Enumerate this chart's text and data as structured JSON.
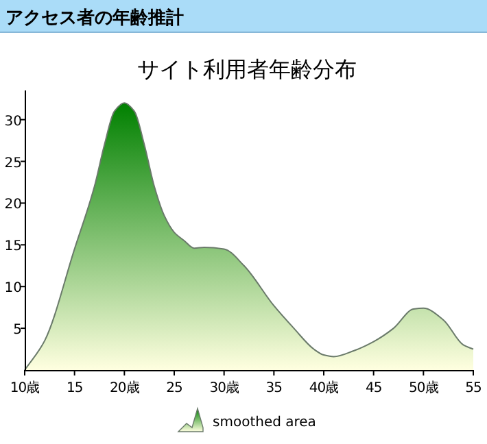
{
  "chart_data": {
    "type": "area",
    "title": "アクセス者の年齢推計",
    "subtitle": "サイト利用者年齢分布",
    "x": [
      10,
      12,
      15,
      17,
      18,
      19,
      20,
      21,
      22,
      23,
      24,
      25,
      26,
      27,
      28,
      30,
      32,
      35,
      37,
      39,
      40,
      41,
      43,
      45,
      47,
      49,
      50,
      52,
      54,
      55
    ],
    "series": [
      {
        "name": "smoothed area",
        "color": "#008000",
        "values": [
          0,
          3.5,
          14.5,
          22,
          27,
          31,
          32,
          31,
          27,
          22,
          18.5,
          16.5,
          15.5,
          14.6,
          14.7,
          14.5,
          12.5,
          7.7,
          5,
          2.5,
          1.8,
          1.6,
          2.3,
          3.4,
          5,
          7.3,
          7.4,
          6,
          3,
          2.5
        ]
      }
    ],
    "xlim": [
      10,
      55
    ],
    "xticks": [
      {
        "value": 10,
        "label": "10歳"
      },
      15,
      {
        "value": 20,
        "label": "20歳"
      },
      25,
      {
        "value": 30,
        "label": "30歳"
      },
      35,
      {
        "value": 40,
        "label": "40歳"
      },
      45,
      {
        "value": 50,
        "label": "50歳"
      },
      55
    ],
    "ylim": [
      0,
      33.5
    ],
    "yticks": [
      5,
      10,
      15,
      20,
      25,
      30
    ],
    "grid": false,
    "legend": "bottom"
  }
}
